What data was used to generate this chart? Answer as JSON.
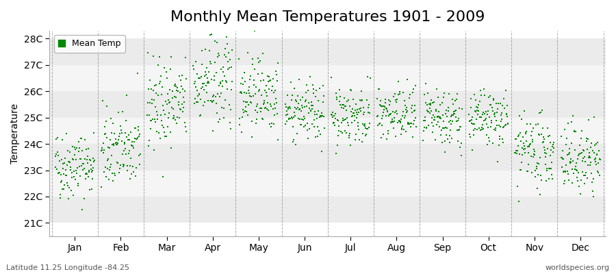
{
  "title": "Monthly Mean Temperatures 1901 - 2009",
  "ylabel": "Temperature",
  "subtitle": "Latitude 11.25 Longitude -84.25",
  "watermark": "worldspecies.org",
  "legend_label": "Mean Temp",
  "dot_color": "#008800",
  "dot_size": 2.5,
  "bg_color": "#FFFFFF",
  "plot_bg_color": "#FFFFFF",
  "band_color_dark": "#E8E8E8",
  "band_color_light": "#F4F4F4",
  "months": [
    "Jan",
    "Feb",
    "Mar",
    "Apr",
    "May",
    "Jun",
    "Jul",
    "Aug",
    "Sep",
    "Oct",
    "Nov",
    "Dec"
  ],
  "monthly_means": [
    23.2,
    23.8,
    25.5,
    26.3,
    26.0,
    25.2,
    25.1,
    25.1,
    24.9,
    24.9,
    23.7,
    23.4
  ],
  "monthly_stds": [
    0.65,
    0.75,
    0.85,
    0.85,
    0.75,
    0.55,
    0.55,
    0.55,
    0.55,
    0.55,
    0.65,
    0.65
  ],
  "yticks": [
    21,
    22,
    23,
    24,
    25,
    26,
    27,
    28
  ],
  "ylim": [
    20.5,
    28.3
  ],
  "xlim": [
    -0.55,
    11.55
  ],
  "vline_color": "#888888",
  "hband_colors": [
    "#EBEBEB",
    "#F5F5F5"
  ],
  "title_fontsize": 16,
  "axis_fontsize": 10,
  "tick_fontsize": 10,
  "n_years": 109,
  "seed": 42
}
